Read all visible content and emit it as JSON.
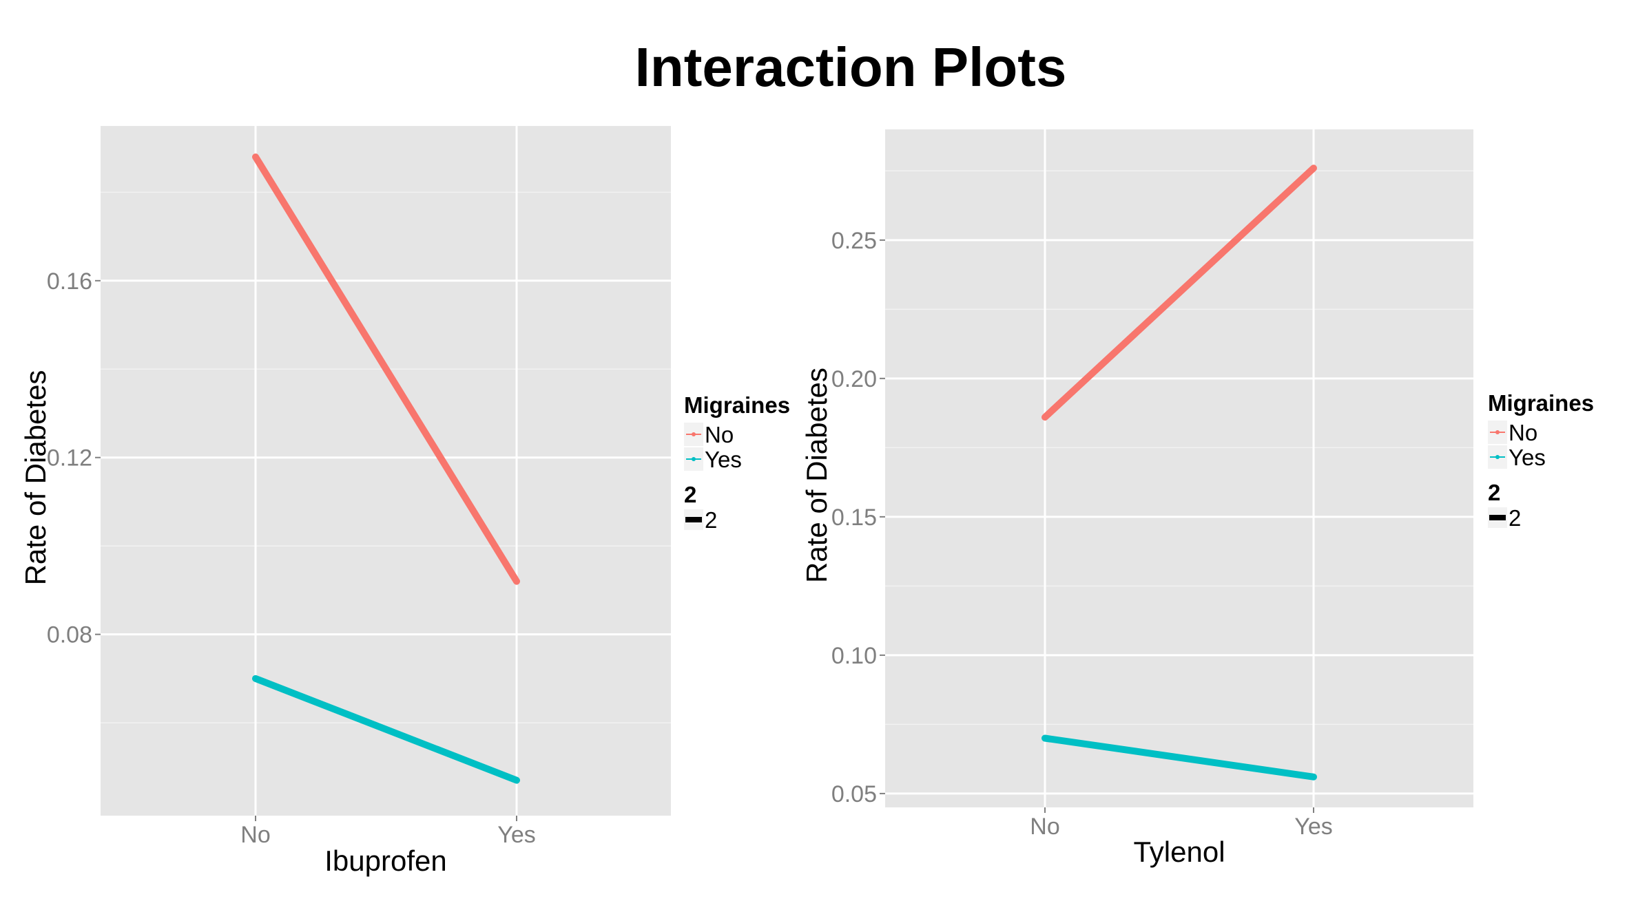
{
  "title": "Interaction Plots",
  "chart_data": [
    {
      "type": "line",
      "xlabel": "Ibuprofen",
      "ylabel": "Rate of Diabetes",
      "categories": [
        "No",
        "Yes"
      ],
      "ylim": [
        0.039,
        0.195
      ],
      "yticks": [
        0.08,
        0.12,
        0.16
      ],
      "ytick_labels": [
        "0.08",
        "0.12",
        "0.16"
      ],
      "grid": true,
      "series": [
        {
          "name": "No",
          "color": "#F8766D",
          "values": [
            0.188,
            0.092
          ]
        },
        {
          "name": "Yes",
          "color": "#00BFC4",
          "values": [
            0.07,
            0.047
          ]
        }
      ],
      "legend": {
        "title": "Migraines",
        "size_title": "2",
        "size_label": "2",
        "placement": "right"
      }
    },
    {
      "type": "line",
      "xlabel": "Tylenol",
      "ylabel": "Rate of Diabetes",
      "categories": [
        "No",
        "Yes"
      ],
      "ylim": [
        0.045,
        0.29
      ],
      "yticks": [
        0.05,
        0.1,
        0.15,
        0.2,
        0.25
      ],
      "ytick_labels": [
        "0.05",
        "0.10",
        "0.15",
        "0.20",
        "0.25"
      ],
      "grid": true,
      "series": [
        {
          "name": "No",
          "color": "#F8766D",
          "values": [
            0.186,
            0.276
          ]
        },
        {
          "name": "Yes",
          "color": "#00BFC4",
          "values": [
            0.07,
            0.056
          ]
        }
      ],
      "legend": {
        "title": "Migraines",
        "size_title": "2",
        "size_label": "2",
        "placement": "right"
      }
    }
  ]
}
